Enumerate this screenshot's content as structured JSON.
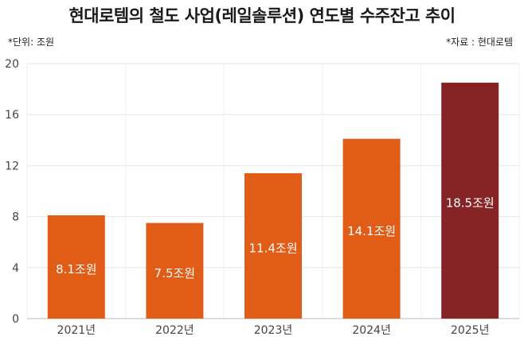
{
  "header": {
    "title": "현대로템의 철도 사업(레일솔루션) 연도별 수주잔고 추이",
    "unit_note": "*단위: 조원",
    "source_note": "*자료 : 현대로템"
  },
  "chart_data": {
    "type": "bar",
    "title": "현대로템의 철도 사업(레일솔루션) 연도별 수주잔고 추이",
    "categories": [
      "2021년",
      "2022년",
      "2023년",
      "2024년",
      "2025년"
    ],
    "values": [
      8.1,
      7.5,
      11.4,
      14.1,
      18.5
    ],
    "data_labels": [
      "8.1조원",
      "7.5조원",
      "11.4조원",
      "14.1조원",
      "18.5조원"
    ],
    "y_ticks": [
      0,
      4,
      8,
      12,
      16,
      20
    ],
    "ylim": [
      0,
      20
    ],
    "xlabel": "",
    "ylabel": "",
    "grid": true,
    "colors": {
      "bar": "#E05C17",
      "highlight_bar": "#862425",
      "label_text": "#ffffff",
      "grid": "#e6e6e6",
      "axis_text": "#444444"
    },
    "highlight_index": 4
  }
}
